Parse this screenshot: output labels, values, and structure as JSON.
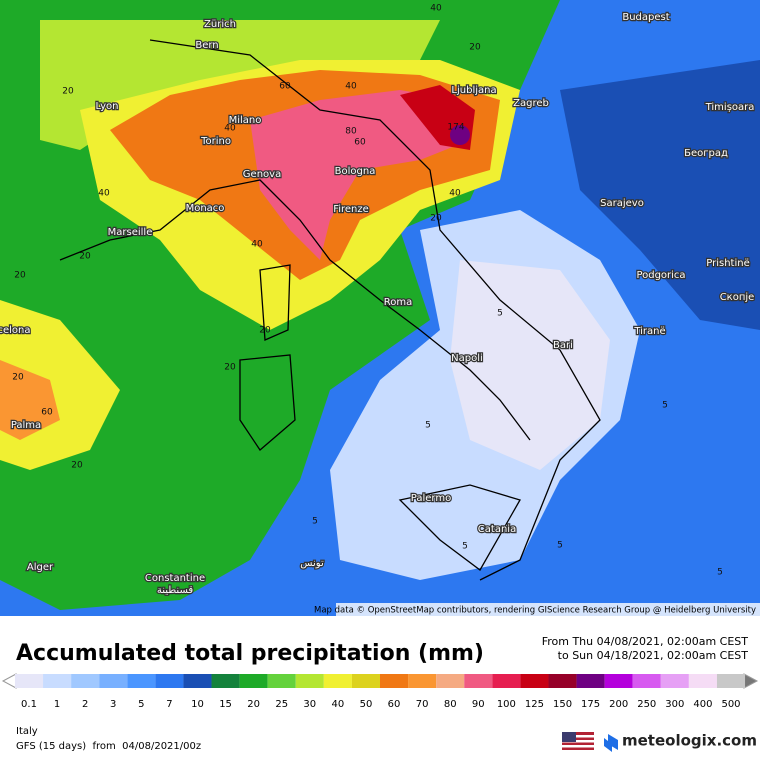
{
  "map": {
    "cities": [
      "Zürich",
      "Bern",
      "Budapest",
      "Lyon",
      "Milano",
      "Ljubljana",
      "Zagreb",
      "Timișoara",
      "Torino",
      "Београд",
      "Genova",
      "Bologna",
      "Monaco",
      "Marseille",
      "Firenze",
      "Sarajevo",
      "Podgorica",
      "Prishtinë",
      "Скопје",
      "Roma",
      "Tiranë",
      "Bari",
      "Napoli",
      "celona",
      "Palma",
      "Palermo",
      "Catania",
      "Alger",
      "Constantine",
      "قسنطينة",
      "تونس"
    ],
    "contour_labels": [
      "40",
      "20",
      "20",
      "60",
      "40",
      "80",
      "60",
      "40",
      "40",
      "174",
      "20",
      "40",
      "40",
      "20",
      "20",
      "20",
      "60",
      "20",
      "5",
      "5",
      "5",
      "5",
      "5",
      "5",
      "5",
      "20",
      "20"
    ],
    "attribution": "Map data © OpenStreetMap contributors, rendering GIScience Research Group @ Heidelberg University"
  },
  "header": {
    "title": "Accumulated total precipitation (mm)",
    "period_from": "From Thu 04/08/2021, 02:00am CEST",
    "period_to": "to Sun 04/18/2021, 02:00am CEST"
  },
  "legend": {
    "levels": [
      0.1,
      1,
      2,
      3,
      5,
      7,
      10,
      15,
      20,
      25,
      30,
      40,
      50,
      60,
      70,
      80,
      90,
      100,
      125,
      150,
      175,
      200,
      250,
      300,
      400,
      500
    ],
    "colors": [
      "#e6e6f8",
      "#c8dcff",
      "#a0c8ff",
      "#78b0ff",
      "#4b96ff",
      "#2d78f0",
      "#1a4fb4",
      "#14823c",
      "#1eaa28",
      "#64d23c",
      "#b4e632",
      "#f0f032",
      "#dcd21e",
      "#f07814",
      "#fa9632",
      "#f5aa82",
      "#f05a82",
      "#e61e50",
      "#c80014",
      "#960028",
      "#6e0082",
      "#b400dc",
      "#d75af0",
      "#e6a0f5",
      "#f5dcf5",
      "#c8c8c8"
    ]
  },
  "footer": {
    "region": "Italy",
    "model": "GFS (15 days)  from  04/08/2021/00z",
    "brand": "meteologix.com"
  }
}
